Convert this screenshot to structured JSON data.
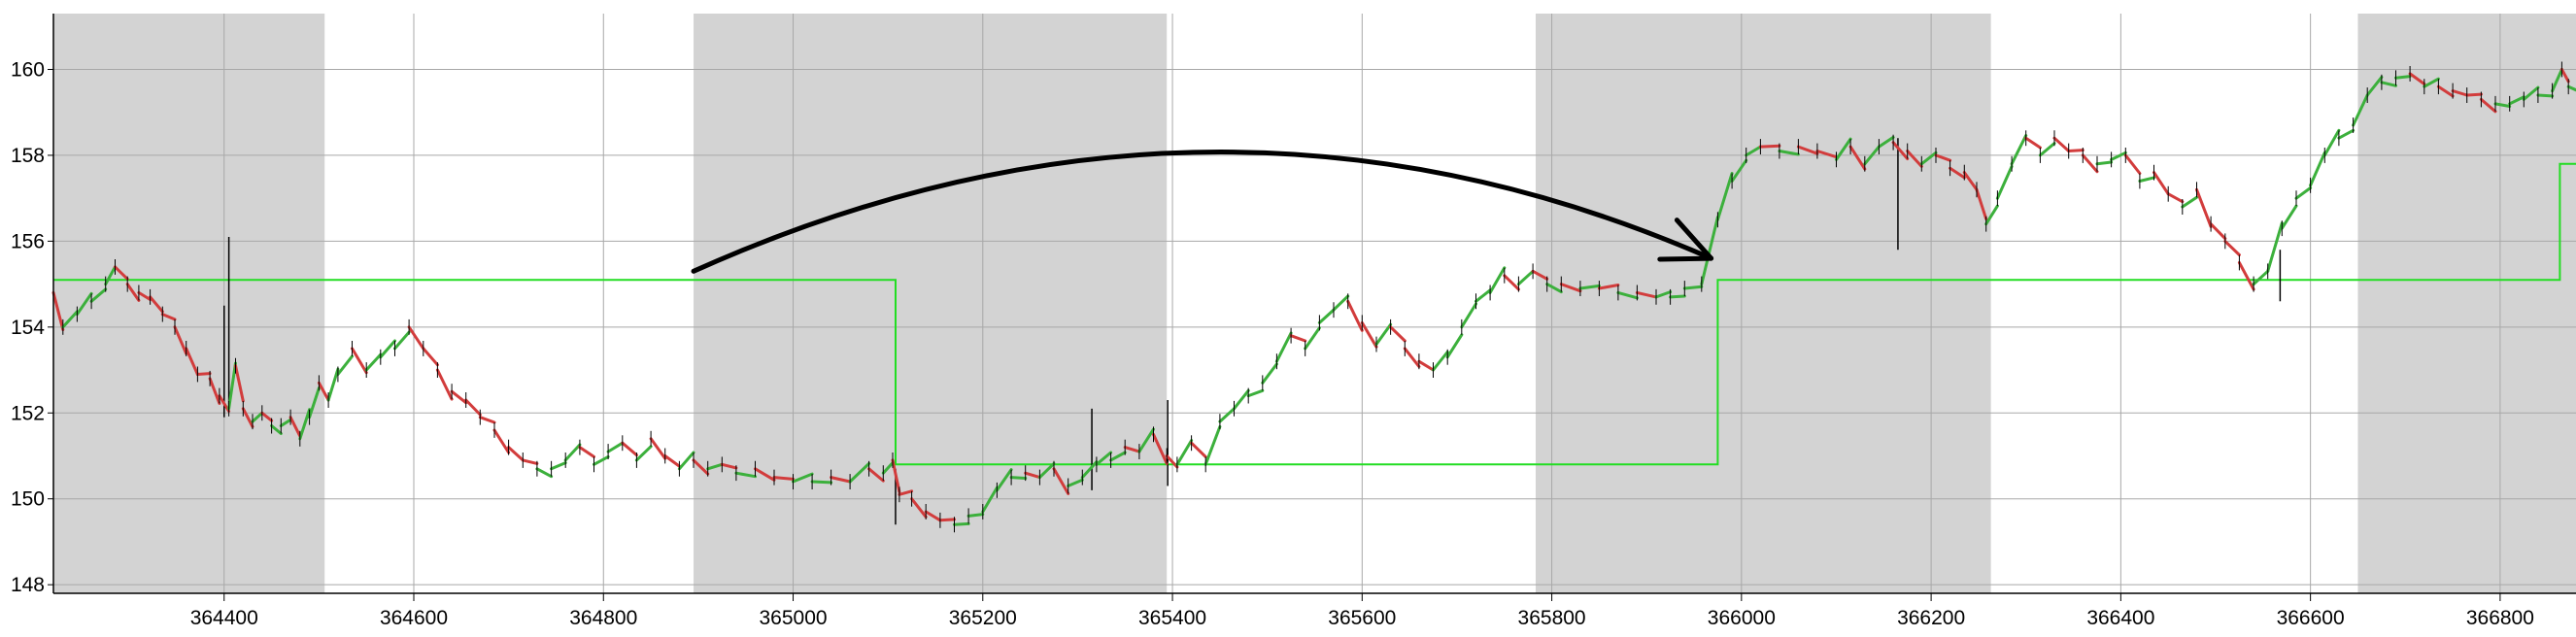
{
  "chart_data": {
    "type": "line",
    "title": "",
    "xlabel": "",
    "ylabel": "",
    "xlim": [
      364220,
      366880
    ],
    "ylim": [
      147.8,
      161.3
    ],
    "grid": true,
    "x_ticks": [
      364400,
      364600,
      364800,
      365000,
      365200,
      365400,
      365600,
      365800,
      366000,
      366200,
      366400,
      366600,
      366800
    ],
    "x_tick_labels": [
      "364400",
      "364600",
      "364800",
      "365000",
      "365200",
      "365400",
      "365600",
      "365800",
      "366000",
      "366200",
      "366400",
      "366600",
      "366800"
    ],
    "y_ticks": [
      148,
      150,
      152,
      154,
      156,
      158,
      160
    ],
    "y_tick_labels": [
      "148",
      "150",
      "152",
      "154",
      "156",
      "158",
      "160"
    ],
    "shaded_ranges": [
      [
        364220,
        364506
      ],
      [
        364895,
        365394
      ],
      [
        365783,
        366263
      ],
      [
        366650,
        366880
      ]
    ],
    "shade_color": "#d3d3d3",
    "colors": {
      "up": "#3cb03c",
      "down": "#d23c3c",
      "wick": "#000000",
      "step": "#22dd22",
      "arrow": "#000000"
    },
    "series": [
      {
        "kind": "candles",
        "points": [
          [
            364220,
            154.8
          ],
          [
            364230,
            154.0
          ],
          [
            364245,
            154.3
          ],
          [
            364260,
            154.6
          ],
          [
            364275,
            155.0
          ],
          [
            364285,
            155.4
          ],
          [
            364298,
            155.0
          ],
          [
            364310,
            154.8
          ],
          [
            364322,
            154.7
          ],
          [
            364335,
            154.3
          ],
          [
            364348,
            154.0
          ],
          [
            364360,
            153.5
          ],
          [
            364372,
            152.9
          ],
          [
            364385,
            152.8
          ],
          [
            364395,
            152.4
          ],
          [
            364405,
            152.1
          ],
          [
            364412,
            153.1
          ],
          [
            364420,
            152.1
          ],
          [
            364430,
            151.8
          ],
          [
            364440,
            152.0
          ],
          [
            364450,
            151.7
          ],
          [
            364460,
            151.7
          ],
          [
            364470,
            151.9
          ],
          [
            364480,
            151.4
          ],
          [
            364490,
            151.9
          ],
          [
            364500,
            152.7
          ],
          [
            364510,
            152.3
          ],
          [
            364520,
            152.9
          ],
          [
            364535,
            153.5
          ],
          [
            364550,
            153.0
          ],
          [
            364565,
            153.3
          ],
          [
            364580,
            153.5
          ],
          [
            364595,
            154.0
          ],
          [
            364610,
            153.5
          ],
          [
            364625,
            153.0
          ],
          [
            364640,
            152.5
          ],
          [
            364655,
            152.3
          ],
          [
            364670,
            151.9
          ],
          [
            364685,
            151.6
          ],
          [
            364700,
            151.2
          ],
          [
            364715,
            150.9
          ],
          [
            364730,
            150.7
          ],
          [
            364745,
            150.7
          ],
          [
            364760,
            150.9
          ],
          [
            364775,
            151.2
          ],
          [
            364790,
            150.8
          ],
          [
            364805,
            151.1
          ],
          [
            364820,
            151.3
          ],
          [
            364835,
            150.9
          ],
          [
            364850,
            151.4
          ],
          [
            364865,
            151.0
          ],
          [
            364880,
            150.7
          ],
          [
            364895,
            150.9
          ],
          [
            364910,
            150.7
          ],
          [
            364925,
            150.8
          ],
          [
            364940,
            150.6
          ],
          [
            364960,
            150.7
          ],
          [
            364980,
            150.5
          ],
          [
            365000,
            150.4
          ],
          [
            365020,
            150.4
          ],
          [
            365040,
            150.5
          ],
          [
            365060,
            150.4
          ],
          [
            365080,
            150.7
          ],
          [
            365095,
            150.6
          ],
          [
            365105,
            150.9
          ],
          [
            365112,
            150.1
          ],
          [
            365125,
            150.0
          ],
          [
            365140,
            149.7
          ],
          [
            365155,
            149.5
          ],
          [
            365170,
            149.4
          ],
          [
            365185,
            149.6
          ],
          [
            365200,
            149.7
          ],
          [
            365215,
            150.2
          ],
          [
            365230,
            150.5
          ],
          [
            365245,
            150.6
          ],
          [
            365260,
            150.5
          ],
          [
            365275,
            150.7
          ],
          [
            365290,
            150.3
          ],
          [
            365305,
            150.5
          ],
          [
            365320,
            150.8
          ],
          [
            365335,
            150.9
          ],
          [
            365350,
            151.2
          ],
          [
            365365,
            151.1
          ],
          [
            365380,
            151.5
          ],
          [
            365394,
            151.0
          ],
          [
            365405,
            150.8
          ],
          [
            365420,
            151.3
          ],
          [
            365435,
            150.8
          ],
          [
            365450,
            151.8
          ],
          [
            365465,
            152.1
          ],
          [
            365480,
            152.4
          ],
          [
            365495,
            152.7
          ],
          [
            365510,
            153.2
          ],
          [
            365525,
            153.8
          ],
          [
            365540,
            153.5
          ],
          [
            365555,
            154.1
          ],
          [
            365570,
            154.4
          ],
          [
            365585,
            154.6
          ],
          [
            365600,
            154.1
          ],
          [
            365615,
            153.6
          ],
          [
            365630,
            154.0
          ],
          [
            365645,
            153.5
          ],
          [
            365660,
            153.2
          ],
          [
            365675,
            153.0
          ],
          [
            365690,
            153.3
          ],
          [
            365705,
            154.0
          ],
          [
            365720,
            154.6
          ],
          [
            365735,
            154.8
          ],
          [
            365750,
            155.2
          ],
          [
            365765,
            155.0
          ],
          [
            365780,
            155.3
          ],
          [
            365795,
            155.0
          ],
          [
            365810,
            155.0
          ],
          [
            365830,
            154.9
          ],
          [
            365850,
            154.9
          ],
          [
            365870,
            154.8
          ],
          [
            365890,
            154.8
          ],
          [
            365910,
            154.7
          ],
          [
            365925,
            154.7
          ],
          [
            365940,
            154.9
          ],
          [
            365958,
            155.0
          ],
          [
            365975,
            156.5
          ],
          [
            365990,
            157.4
          ],
          [
            366005,
            158.0
          ],
          [
            366020,
            158.2
          ],
          [
            366040,
            158.1
          ],
          [
            366060,
            158.2
          ],
          [
            366080,
            158.1
          ],
          [
            366100,
            157.9
          ],
          [
            366115,
            158.2
          ],
          [
            366130,
            157.8
          ],
          [
            366145,
            158.2
          ],
          [
            366160,
            158.3
          ],
          [
            366175,
            158.1
          ],
          [
            366190,
            157.8
          ],
          [
            366205,
            158.0
          ],
          [
            366220,
            157.7
          ],
          [
            366235,
            157.6
          ],
          [
            366248,
            157.2
          ],
          [
            366258,
            156.4
          ],
          [
            366270,
            157.0
          ],
          [
            366285,
            157.8
          ],
          [
            366300,
            158.4
          ],
          [
            366315,
            158.0
          ],
          [
            366330,
            158.4
          ],
          [
            366345,
            158.1
          ],
          [
            366360,
            158.0
          ],
          [
            366375,
            157.8
          ],
          [
            366390,
            157.9
          ],
          [
            366405,
            158.0
          ],
          [
            366420,
            157.4
          ],
          [
            366435,
            157.6
          ],
          [
            366450,
            157.1
          ],
          [
            366465,
            156.8
          ],
          [
            366480,
            157.2
          ],
          [
            366495,
            156.4
          ],
          [
            366510,
            156.0
          ],
          [
            366525,
            155.5
          ],
          [
            366540,
            155.0
          ],
          [
            366555,
            155.3
          ],
          [
            366570,
            156.3
          ],
          [
            366585,
            157.0
          ],
          [
            366600,
            157.3
          ],
          [
            366615,
            158.0
          ],
          [
            366630,
            158.4
          ],
          [
            366645,
            158.7
          ],
          [
            366660,
            159.4
          ],
          [
            366675,
            159.7
          ],
          [
            366690,
            159.8
          ],
          [
            366705,
            159.9
          ],
          [
            366720,
            159.6
          ],
          [
            366735,
            159.6
          ],
          [
            366750,
            159.5
          ],
          [
            366765,
            159.4
          ],
          [
            366780,
            159.3
          ],
          [
            366795,
            159.2
          ],
          [
            366810,
            159.2
          ],
          [
            366825,
            159.3
          ],
          [
            366840,
            159.4
          ],
          [
            366855,
            159.5
          ],
          [
            366865,
            160.0
          ],
          [
            366872,
            159.6
          ],
          [
            366880,
            159.7
          ]
        ]
      },
      {
        "kind": "step",
        "points": [
          [
            364220,
            155.1
          ],
          [
            365108,
            155.1
          ],
          [
            365108,
            150.8
          ],
          [
            365975,
            150.8
          ],
          [
            365975,
            155.1
          ],
          [
            366863,
            155.1
          ],
          [
            366863,
            157.8
          ],
          [
            366880,
            157.8
          ]
        ]
      }
    ],
    "spikes": [
      [
        364405,
        152.2,
        156.1
      ],
      [
        364400,
        151.9,
        154.5
      ],
      [
        365108,
        149.4,
        150.7
      ],
      [
        365315,
        150.2,
        152.1
      ],
      [
        365395,
        150.3,
        152.3
      ],
      [
        366165,
        155.8,
        158.4
      ],
      [
        366568,
        154.6,
        155.8
      ]
    ],
    "annotations": [
      {
        "kind": "arrow",
        "from": [
          364895,
          155.3
        ],
        "control": [
          365440,
          160.7
        ],
        "to": [
          365968,
          155.6
        ]
      }
    ]
  }
}
